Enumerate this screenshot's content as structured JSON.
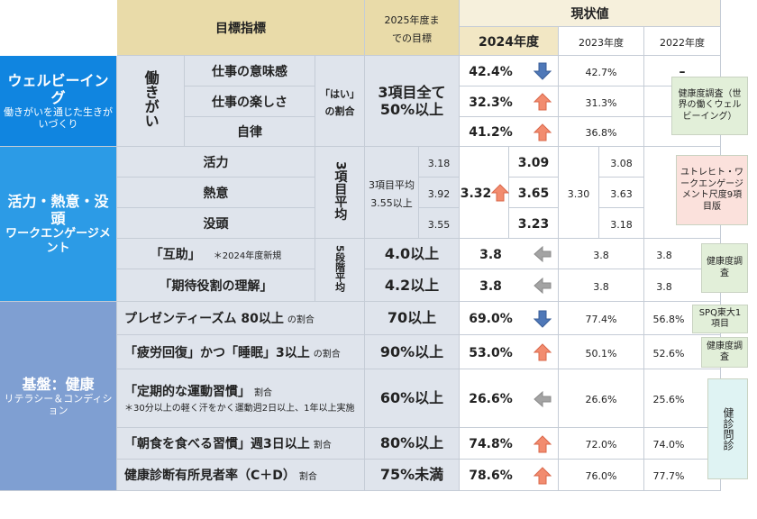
{
  "header": {
    "indicator": "目標指標",
    "target": "2025年度までの目標",
    "current": "現状値",
    "years": [
      "2024年度",
      "2023年度",
      "2022年度"
    ]
  },
  "sections": [
    {
      "title": "ウェルビーイング",
      "subtitle": "働きがいを通じた生きがいづくり",
      "group": "働きがい",
      "measure": "「はい」の割合",
      "target": "3項目全て50%以上",
      "note": "健康度調査（世界の働くウェルビーイング）",
      "rows": [
        {
          "label": "仕事の意味感",
          "values": [
            "42.4%",
            "42.7%",
            "–"
          ]
        },
        {
          "label": "仕事の楽しさ",
          "values": [
            "32.3%",
            "31.3%"
          ]
        },
        {
          "label": "自律",
          "values": [
            "41.2%",
            "36.8%"
          ]
        }
      ]
    },
    {
      "title": "活力・熱意・没頭",
      "subtitle": "ワークエンゲージメント",
      "measure": "3項目平均",
      "target": "3項目平均3.55以上",
      "average": [
        "3.32",
        "3.30"
      ],
      "note": "ユトレヒト・ワークエンゲージメント尺度9項目版",
      "rows": [
        {
          "label": "活力",
          "target": "3.18",
          "values": [
            "3.09",
            "3.08"
          ]
        },
        {
          "label": "熱意",
          "target": "3.92",
          "values": [
            "3.65",
            "3.63"
          ]
        },
        {
          "label": "没頭",
          "target": "3.55",
          "values": [
            "3.23",
            "3.18"
          ]
        }
      ],
      "extra_measure": "5段階平均",
      "extra_note": "健康度調査",
      "extra_rows": [
        {
          "label": "「互助」",
          "tag": "＊2024年度新規",
          "target": "4.0以上",
          "values": [
            "3.8",
            "3.8",
            "3.8"
          ]
        },
        {
          "label": "「期待役割の理解」",
          "target": "4.2以上",
          "values": [
            "3.8",
            "3.8",
            "3.8"
          ]
        }
      ]
    },
    {
      "title": "基盤：健康",
      "subtitle": "リテラシー＆コンディション",
      "note": "健診問診",
      "rows": [
        {
          "label": "プレゼンティーズム 80以上",
          "suffix": "の割合",
          "target": "70以上",
          "values": [
            "69.0%",
            "77.4%",
            "56.8%"
          ],
          "note": "SPQ東大1項目"
        },
        {
          "label": "「疲労回復」かつ「睡眠」3以上",
          "suffix": "の割合",
          "target": "90%以上",
          "values": [
            "53.0%",
            "50.1%",
            "52.6%"
          ],
          "note": "健康度調査"
        },
        {
          "label": "「定期的な運動習慣」",
          "suffix": "割合",
          "sub": "＊30分以上の軽く汗をかく運動週2日以上、1年以上実施",
          "target": "60%以上",
          "values": [
            "26.6%",
            "26.6%",
            "25.6%"
          ]
        },
        {
          "label": "「朝食を食べる習慣」週3日以上",
          "suffix": "割合",
          "target": "80%以上",
          "values": [
            "74.8%",
            "72.0%",
            "74.0%"
          ]
        },
        {
          "label": "健康診断有所見者率（C＋D）",
          "suffix": "割合",
          "target": "75%未満",
          "values": [
            "78.6%",
            "76.0%",
            "77.7%"
          ]
        }
      ]
    }
  ]
}
